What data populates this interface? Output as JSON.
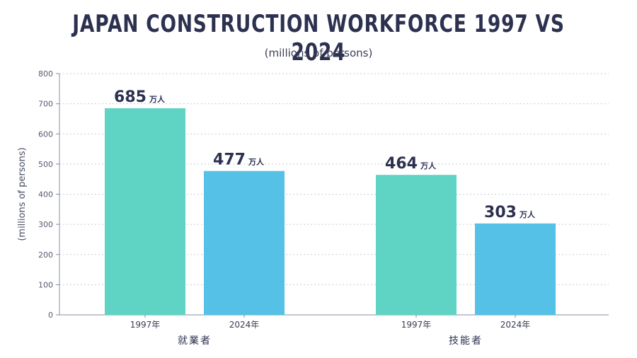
{
  "chart_data": {
    "type": "bar",
    "title": "JAPAN CONSTRUCTION WORKFORCE 1997 VS 2024",
    "subtitle": "(millions of persons)",
    "ylabel": "(millions of persons)",
    "xlabel": "",
    "ylim": [
      0,
      800
    ],
    "yticks": [
      0,
      100,
      200,
      300,
      400,
      500,
      600,
      700,
      800
    ],
    "grid": true,
    "value_unit": "万人",
    "groups": [
      {
        "label": "就業者",
        "bars": [
          {
            "category": "1997年",
            "value": 685,
            "color": "#5fd3c4"
          },
          {
            "category": "2024年",
            "value": 477,
            "color": "#55c1e6"
          }
        ]
      },
      {
        "label": "技能者",
        "bars": [
          {
            "category": "1997年",
            "value": 464,
            "color": "#5fd3c4"
          },
          {
            "category": "2024年",
            "value": 303,
            "color": "#55c1e6"
          }
        ]
      }
    ]
  }
}
